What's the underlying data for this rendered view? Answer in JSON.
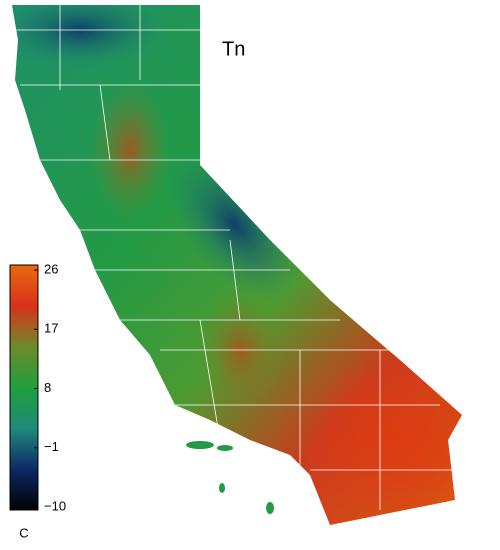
{
  "title": "Tn",
  "colorbar": {
    "unit": "C",
    "lim": [
      -10,
      26
    ],
    "ticks": [
      26,
      17,
      8,
      {
        "value": -1,
        "label": "−1"
      },
      {
        "value": -10,
        "label": "−10"
      }
    ],
    "colors": [
      "#000000",
      "#0d2a66",
      "#1f8a7a",
      "#1fa03c",
      "#6f8a2a",
      "#d8321a",
      "#e86a10"
    ]
  }
}
